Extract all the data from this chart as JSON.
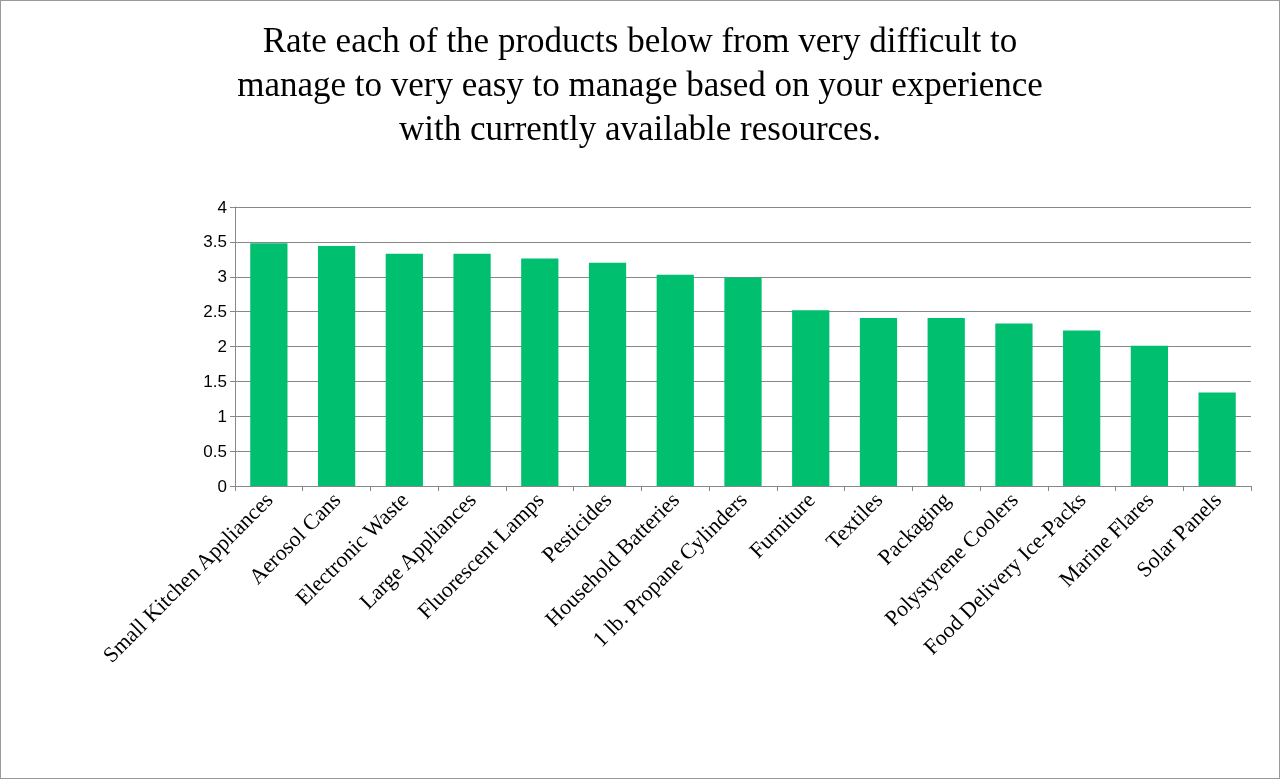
{
  "chart_data": {
    "type": "bar",
    "title": "Rate each of the products below from very difficult to\nmanage to very easy to manage based on your experience\nwith currently available resources.",
    "categories": [
      "Small Kitchen Appliances",
      "Aerosol Cans",
      "Electronic Waste",
      "Large Appliances",
      "Fluorescent Lamps",
      "Pesticides",
      "Household Batteries",
      "1 lb. Propane Cylinders",
      "Furniture",
      "Textiles",
      "Packaging",
      "Polystyrene Coolers",
      "Food Delivery Ice-Packs",
      "Marine Flares",
      "Solar Panels"
    ],
    "values": [
      3.48,
      3.44,
      3.33,
      3.33,
      3.26,
      3.2,
      3.03,
      2.99,
      2.52,
      2.41,
      2.41,
      2.33,
      2.23,
      2.01,
      1.34
    ],
    "color": "#00c070",
    "ylim": [
      0,
      4
    ],
    "yticks": [
      0,
      0.5,
      1,
      1.5,
      2,
      2.5,
      3,
      3.5,
      4
    ],
    "grid": "y"
  }
}
